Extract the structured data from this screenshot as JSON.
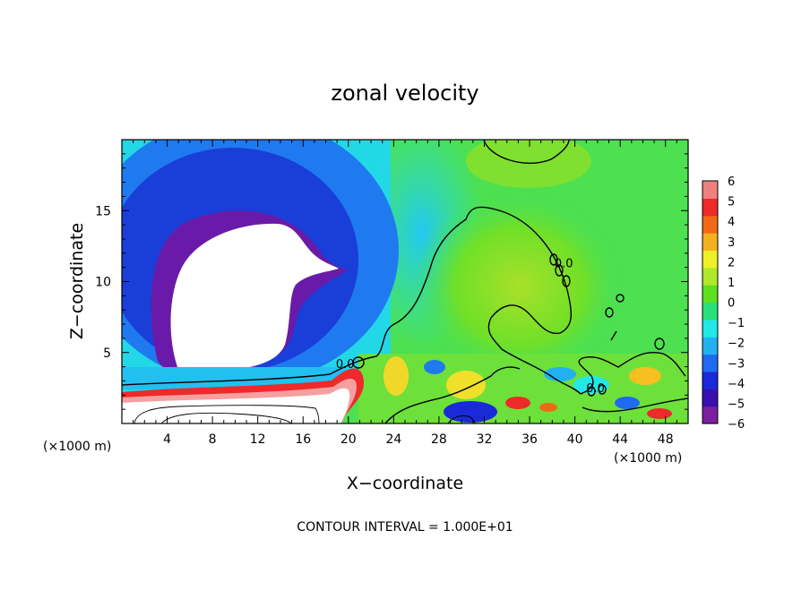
{
  "chart_data": {
    "type": "heatmap",
    "title": "zonal velocity",
    "xlabel": "X−coordinate",
    "ylabel": "Z−coordinate",
    "x_unit_left": "(×1000 m)",
    "x_unit_right": "(×1000 m)",
    "note": "CONTOUR INTERVAL = 1.000E+01",
    "xlim": [
      0,
      50
    ],
    "ylim": [
      0,
      20
    ],
    "x_ticks": [
      4,
      8,
      12,
      16,
      20,
      24,
      28,
      32,
      36,
      40,
      44,
      48
    ],
    "x_tick_labels": [
      "4",
      "8",
      "12",
      "16",
      "20",
      "24",
      "28",
      "32",
      "36",
      "40",
      "44",
      "48"
    ],
    "y_ticks": [
      5,
      10,
      15
    ],
    "y_tick_labels": [
      "5",
      "10",
      "15"
    ],
    "colorbar": {
      "range": [
        -6,
        6
      ],
      "tick_values": [
        6,
        5,
        4,
        3,
        2,
        1,
        0,
        -1,
        -2,
        -3,
        -4,
        -5,
        -6
      ],
      "tick_labels": [
        "6",
        "5",
        "4",
        "3",
        "2",
        "1",
        "0",
        "−1",
        "−2",
        "−3",
        "−4",
        "−5",
        "−6"
      ],
      "colors": [
        "#7a1fa0",
        "#3a0fb0",
        "#1a2ad8",
        "#1f6af0",
        "#22b0f0",
        "#22e8e8",
        "#27e07a",
        "#5ce020",
        "#b0e82a",
        "#f0f02a",
        "#f5b020",
        "#f06a15",
        "#ee2a2a",
        "#f08080"
      ]
    },
    "contour_labels": [
      {
        "text": "0.0",
        "x": 18.9,
        "y": 3.9
      },
      {
        "text": "0.0",
        "x": 41.0,
        "y": 2.2
      },
      {
        "text": "0.0",
        "x": 38.2,
        "y": 11.0
      }
    ]
  }
}
